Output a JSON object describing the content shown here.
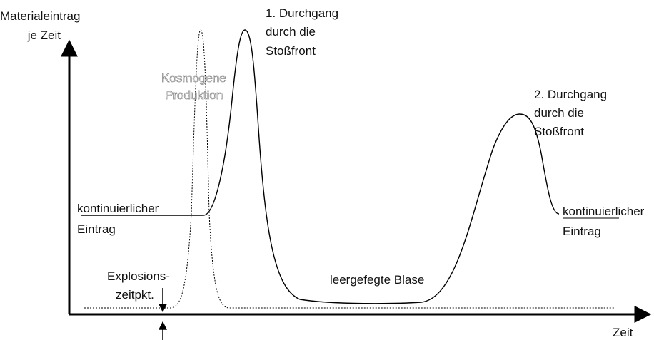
{
  "axes": {
    "y_label": [
      "Materialeintrag",
      "je Zeit"
    ],
    "x_label": "Zeit"
  },
  "labels": {
    "first_passage": [
      "1. Durchgang",
      "durch die",
      "Stoßfront"
    ],
    "second_passage": [
      "2. Durchgang",
      "durch die",
      "Stoßfront"
    ],
    "cosmogenic": [
      "Kosmogene",
      "Produktion"
    ],
    "continuous_left": [
      "kontinuierlicher",
      "Eintrag"
    ],
    "continuous_right": [
      "kontinuierlicher",
      "Eintrag"
    ],
    "bubble": "leergefegte Blase",
    "explosion": [
      "Explosions-",
      "zeitpkt."
    ]
  }
}
